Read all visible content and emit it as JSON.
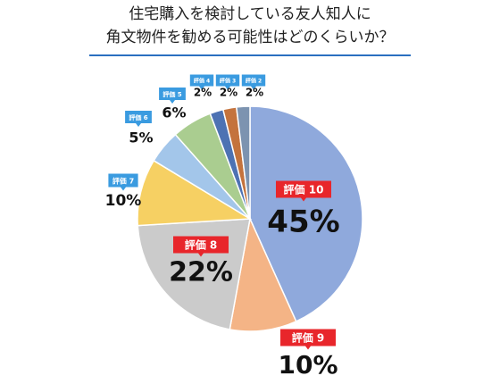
{
  "chart_data": {
    "type": "pie",
    "title": [
      "住宅購入を検討している友人知人に",
      "角文物件を勧める可能性はどのくらいか？"
    ],
    "categories": [
      "評価 10",
      "評価 9",
      "評価 8",
      "評価 7",
      "評価 6",
      "評価 5",
      "評価 4",
      "評価 3",
      "評価 2"
    ],
    "values": [
      45,
      10,
      22,
      10,
      5,
      6,
      2,
      2,
      2
    ],
    "value_labels": [
      "45%",
      "10%",
      "22%",
      "10%",
      "5%",
      "6%",
      "2%",
      "2%",
      "2%"
    ],
    "colors": [
      "#8fa9dc",
      "#f4b486",
      "#cbcbcb",
      "#f6d063",
      "#a3c6ea",
      "#aacd90",
      "#4d72b3",
      "#c4733d",
      "#7c93b0"
    ]
  }
}
